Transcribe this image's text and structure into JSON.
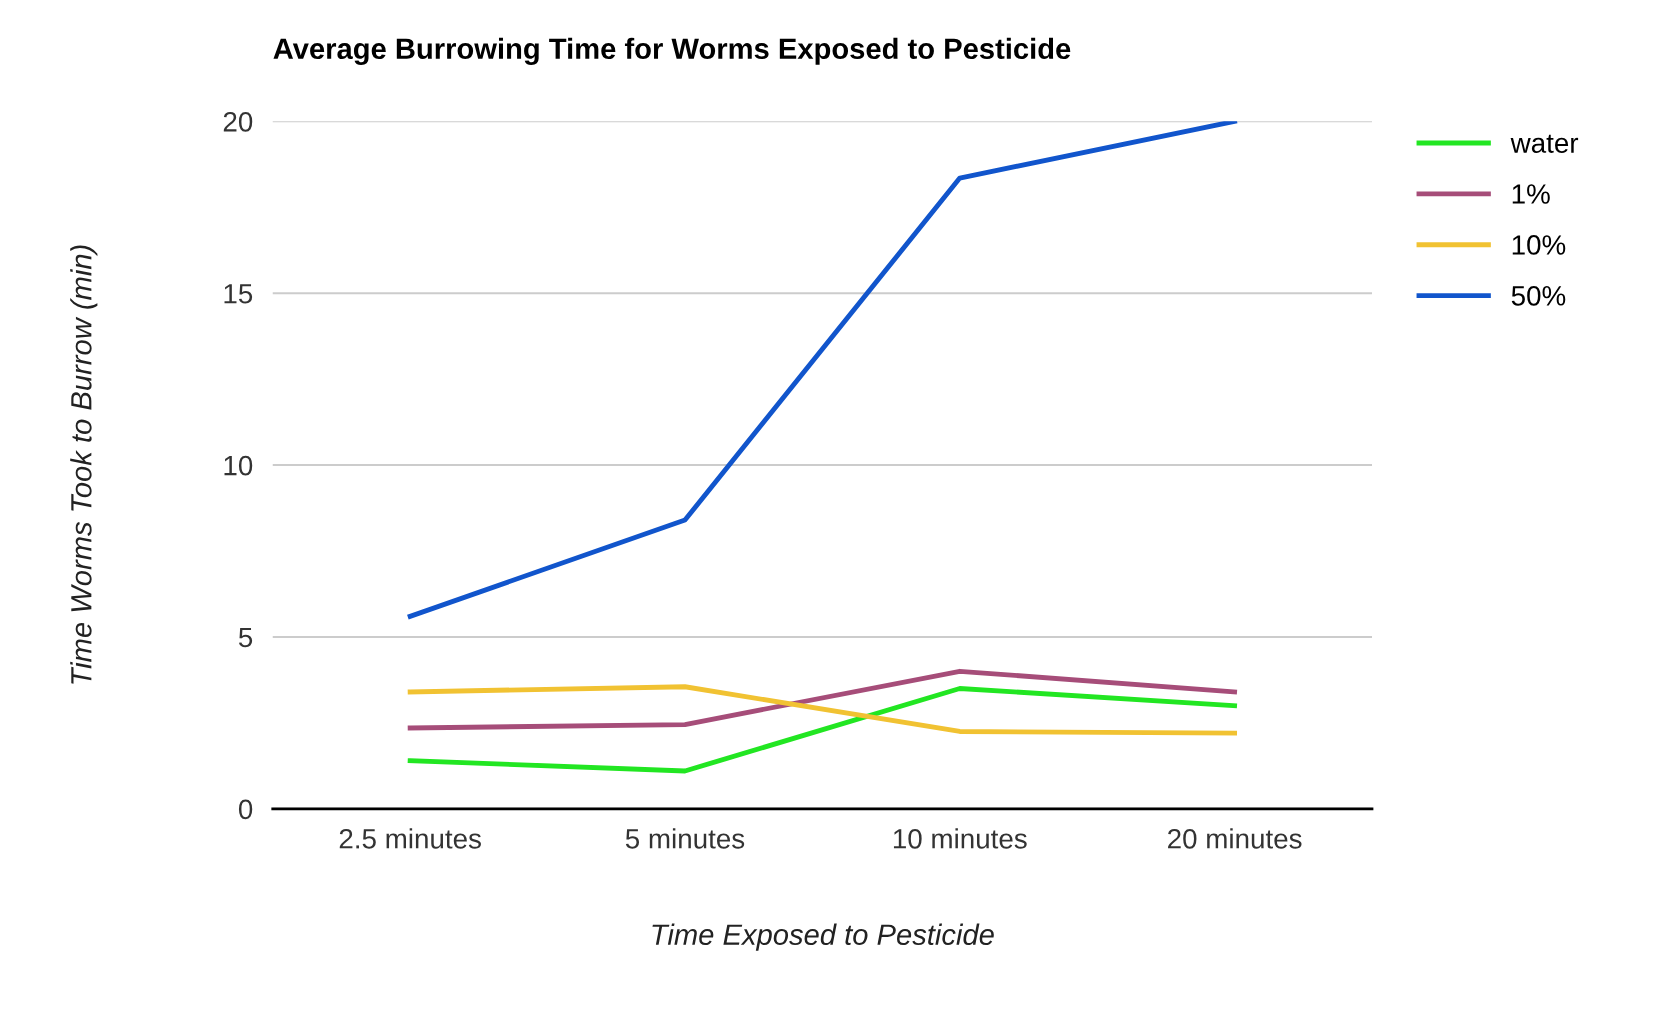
{
  "chart_data": {
    "type": "line",
    "title": "Average Burrowing Time for Worms Exposed to Pesticide",
    "xlabel": "Time Exposed to Pesticide",
    "ylabel": "Time Worms Took to Burrow (min)",
    "categories": [
      "2.5 minutes",
      "5 minutes",
      "10 minutes",
      "20 minutes"
    ],
    "series": [
      {
        "name": "water",
        "color": "#22e622",
        "values": [
          1.4,
          1.1,
          3.5,
          3.0
        ]
      },
      {
        "name": "1%",
        "color": "#a64d79",
        "values": [
          2.35,
          2.45,
          4.0,
          3.4
        ]
      },
      {
        "name": "10%",
        "color": "#f1c232",
        "values": [
          3.4,
          3.55,
          2.25,
          2.2
        ]
      },
      {
        "name": "50%",
        "color": "#1155cc",
        "values": [
          5.6,
          8.4,
          18.35,
          20
        ]
      }
    ],
    "ylim": [
      0,
      20
    ],
    "yticks": [
      0,
      5,
      10,
      15,
      20
    ],
    "grid": "y",
    "legend": "right",
    "marker": "none",
    "line_style": "solid"
  }
}
